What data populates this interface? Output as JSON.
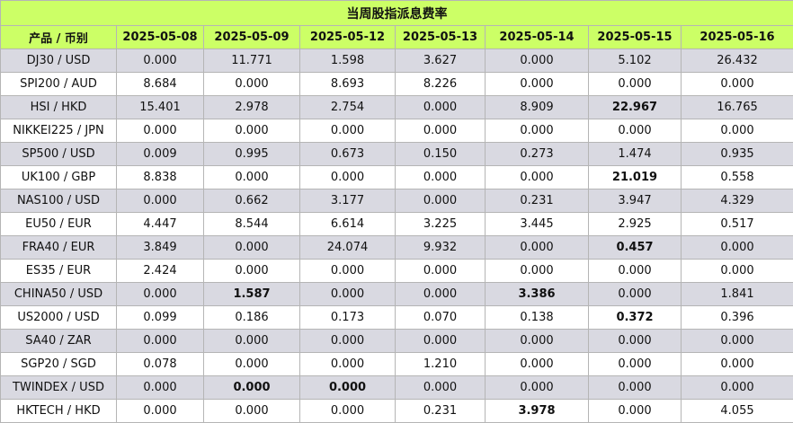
{
  "title": "当周股指派息费率",
  "header": {
    "product_label": "产品 / 币别",
    "dates": [
      "2025-05-08",
      "2025-05-09",
      "2025-05-12",
      "2025-05-13",
      "2025-05-14",
      "2025-05-15",
      "2025-05-16"
    ]
  },
  "rows": [
    {
      "product": "DJ30 / USD",
      "values": [
        "0.000",
        "11.771",
        "1.598",
        "3.627",
        "0.000",
        "5.102",
        "26.432"
      ],
      "bold": []
    },
    {
      "product": "SPI200 / AUD",
      "values": [
        "8.684",
        "0.000",
        "8.693",
        "8.226",
        "0.000",
        "0.000",
        "0.000"
      ],
      "bold": []
    },
    {
      "product": "HSI / HKD",
      "values": [
        "15.401",
        "2.978",
        "2.754",
        "0.000",
        "8.909",
        "22.967",
        "16.765"
      ],
      "bold": [
        5
      ]
    },
    {
      "product": "NIKKEI225 / JPN",
      "values": [
        "0.000",
        "0.000",
        "0.000",
        "0.000",
        "0.000",
        "0.000",
        "0.000"
      ],
      "bold": []
    },
    {
      "product": "SP500 / USD",
      "values": [
        "0.009",
        "0.995",
        "0.673",
        "0.150",
        "0.273",
        "1.474",
        "0.935"
      ],
      "bold": []
    },
    {
      "product": "UK100 / GBP",
      "values": [
        "8.838",
        "0.000",
        "0.000",
        "0.000",
        "0.000",
        "21.019",
        "0.558"
      ],
      "bold": [
        5
      ]
    },
    {
      "product": "NAS100 / USD",
      "values": [
        "0.000",
        "0.662",
        "3.177",
        "0.000",
        "0.231",
        "3.947",
        "4.329"
      ],
      "bold": []
    },
    {
      "product": "EU50 / EUR",
      "values": [
        "4.447",
        "8.544",
        "6.614",
        "3.225",
        "3.445",
        "2.925",
        "0.517"
      ],
      "bold": []
    },
    {
      "product": "FRA40 / EUR",
      "values": [
        "3.849",
        "0.000",
        "24.074",
        "9.932",
        "0.000",
        "0.457",
        "0.000"
      ],
      "bold": [
        5
      ]
    },
    {
      "product": "ES35 / EUR",
      "values": [
        "2.424",
        "0.000",
        "0.000",
        "0.000",
        "0.000",
        "0.000",
        "0.000"
      ],
      "bold": []
    },
    {
      "product": "CHINA50 / USD",
      "values": [
        "0.000",
        "1.587",
        "0.000",
        "0.000",
        "3.386",
        "0.000",
        "1.841"
      ],
      "bold": [
        1,
        4
      ]
    },
    {
      "product": "US2000 / USD",
      "values": [
        "0.099",
        "0.186",
        "0.173",
        "0.070",
        "0.138",
        "0.372",
        "0.396"
      ],
      "bold": [
        5
      ]
    },
    {
      "product": "SA40 / ZAR",
      "values": [
        "0.000",
        "0.000",
        "0.000",
        "0.000",
        "0.000",
        "0.000",
        "0.000"
      ],
      "bold": []
    },
    {
      "product": "SGP20 / SGD",
      "values": [
        "0.078",
        "0.000",
        "0.000",
        "1.210",
        "0.000",
        "0.000",
        "0.000"
      ],
      "bold": []
    },
    {
      "product": "TWINDEX / USD",
      "values": [
        "0.000",
        "0.000",
        "0.000",
        "0.000",
        "0.000",
        "0.000",
        "0.000"
      ],
      "bold": [
        1,
        2
      ]
    },
    {
      "product": "HKTECH / HKD",
      "values": [
        "0.000",
        "0.000",
        "0.000",
        "0.231",
        "3.978",
        "0.000",
        "4.055"
      ],
      "bold": [
        4
      ]
    }
  ],
  "colors": {
    "header_bg": "#ccff66",
    "odd_row_bg": "#d9d9e1",
    "even_row_bg": "#ffffff",
    "border": "#b5b5b5"
  }
}
